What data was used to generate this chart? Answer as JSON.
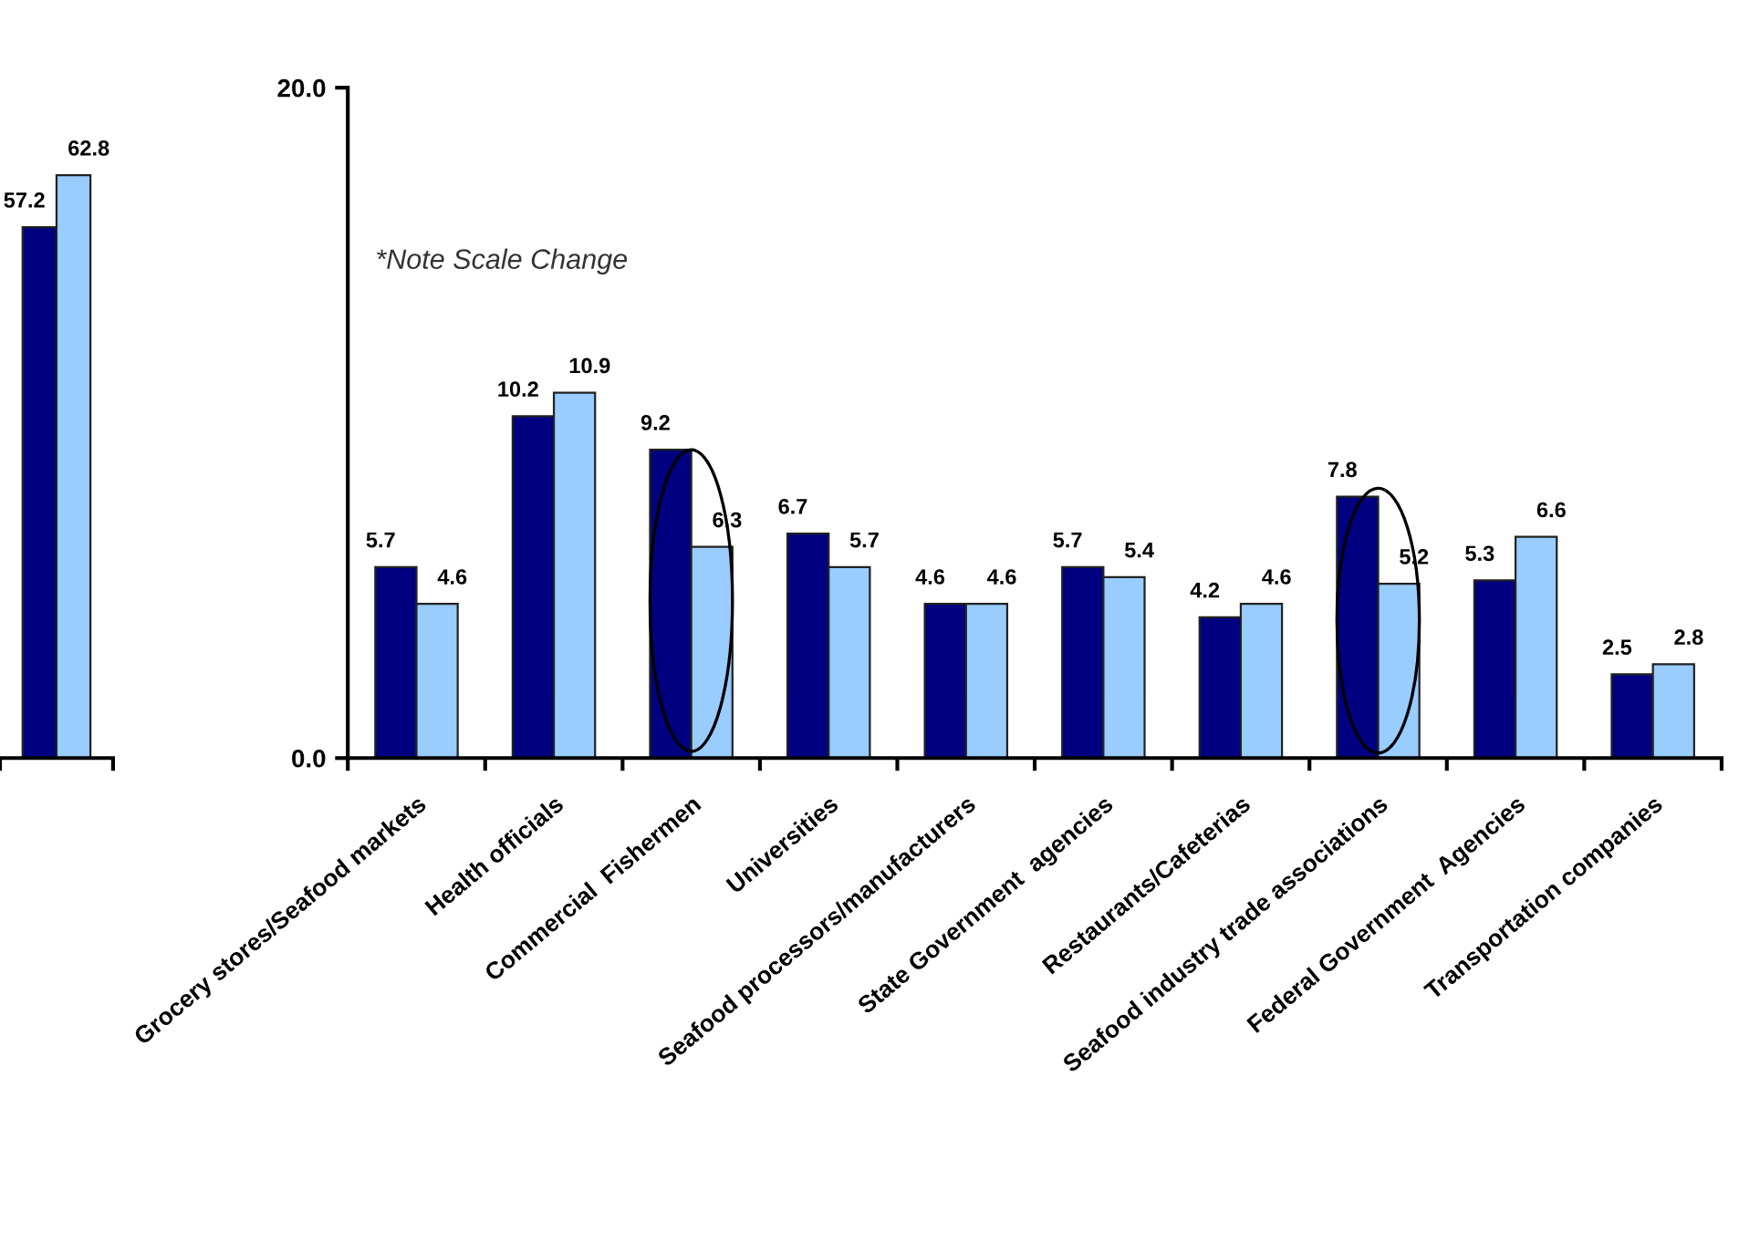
{
  "chart_data": [
    {
      "type": "bar",
      "categories": [
        null
      ],
      "series": [
        {
          "color": "#000080",
          "values": [
            57.2
          ]
        },
        {
          "color": "#99ccff",
          "values": [
            62.8
          ]
        }
      ],
      "data_labels": true,
      "grid": false,
      "legend": false
    },
    {
      "type": "bar",
      "categories": [
        "Grocery stores/Seafood markets",
        "Health officials",
        "Commercial  Fishermen",
        "Universities",
        "Seafood processors/manufacturers",
        "State Government  agencies",
        "Restaurants/Cafeterias",
        "Seafood industry trade associations",
        "Federal Government  Agencies",
        "Transportation companies"
      ],
      "series": [
        {
          "color": "#000080",
          "values": [
            5.7,
            10.2,
            9.2,
            6.7,
            4.6,
            5.7,
            4.2,
            7.8,
            5.3,
            2.5
          ]
        },
        {
          "color": "#99ccff",
          "values": [
            4.6,
            10.9,
            6.3,
            5.7,
            4.6,
            5.4,
            4.6,
            5.2,
            6.6,
            2.8
          ]
        }
      ],
      "ylim": [
        0,
        20
      ],
      "yticks": [
        {
          "value": 0,
          "label": "0.0"
        },
        {
          "value": 20,
          "label": "20.0"
        }
      ],
      "data_labels": true,
      "grid": false,
      "legend": false,
      "annotations": [
        {
          "text": "*Note Scale Change"
        }
      ]
    }
  ]
}
